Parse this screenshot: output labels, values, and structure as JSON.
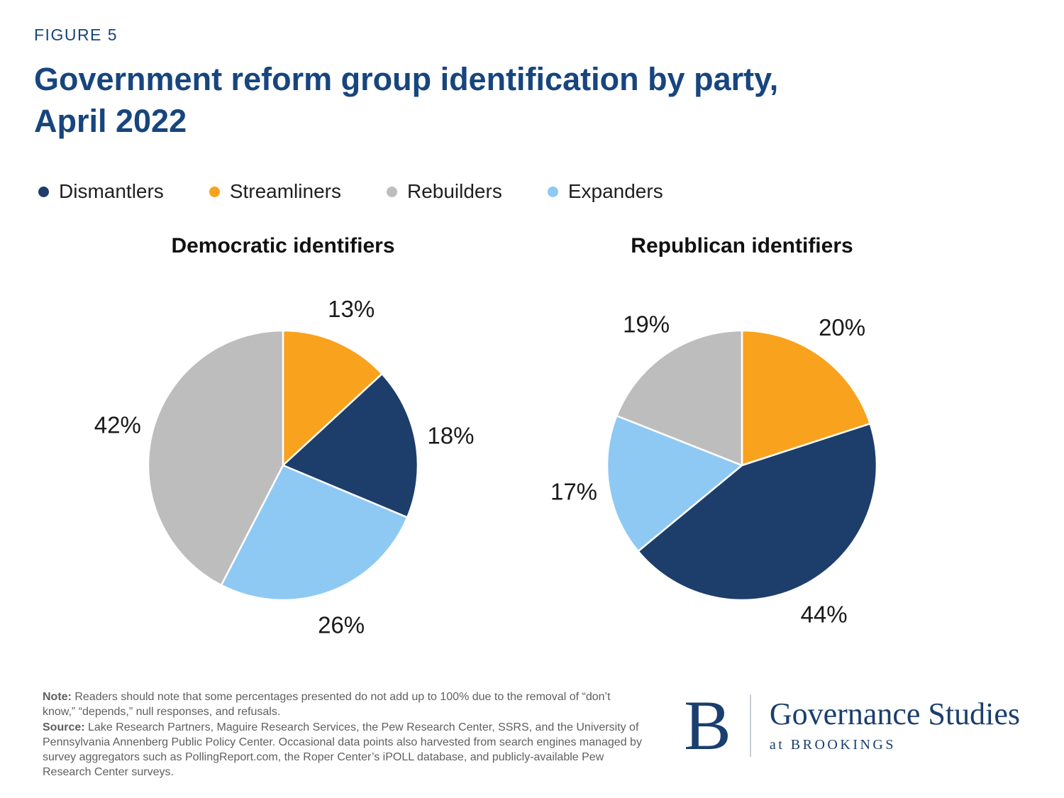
{
  "figure_label": "FIGURE 5",
  "title": {
    "full": "Government reform group identification by party, April 2022",
    "line1": "Government reform group identification by party,",
    "line2": "April 2022"
  },
  "colors": {
    "navy": "#1D3E6B",
    "orange": "#F9A21D",
    "gray": "#BDBDBD",
    "light_blue": "#8EC9F4",
    "brand_blue": "#17457E"
  },
  "legend": [
    {
      "label": "Dismantlers",
      "color": "#1D3E6B"
    },
    {
      "label": "Streamliners",
      "color": "#F9A21D"
    },
    {
      "label": "Rebuilders",
      "color": "#BDBDBD"
    },
    {
      "label": "Expanders",
      "color": "#8EC9F4"
    }
  ],
  "chart_data": [
    {
      "type": "pie",
      "title": "Democratic identifiers",
      "start_angle_deg": 0,
      "direction": "clockwise",
      "slices": [
        {
          "label": "Streamliners",
          "value": 13,
          "color": "#F9A21D"
        },
        {
          "label": "Dismantlers",
          "value": 18,
          "color": "#1D3E6B"
        },
        {
          "label": "Expanders",
          "value": 26,
          "color": "#8EC9F4"
        },
        {
          "label": "Rebuilders",
          "value": 42,
          "color": "#BDBDBD"
        }
      ]
    },
    {
      "type": "pie",
      "title": "Republican identifiers",
      "start_angle_deg": 0,
      "direction": "clockwise",
      "slices": [
        {
          "label": "Streamliners",
          "value": 20,
          "color": "#F9A21D"
        },
        {
          "label": "Dismantlers",
          "value": 44,
          "color": "#1D3E6B"
        },
        {
          "label": "Expanders",
          "value": 17,
          "color": "#8EC9F4"
        },
        {
          "label": "Rebuilders",
          "value": 19,
          "color": "#BDBDBD"
        }
      ]
    }
  ],
  "note": {
    "note_label": "Note:",
    "note_text": "Readers should note that some percentages presented do not add up to 100% due to the removal of “don’t know,” “depends,” null responses, and refusals.",
    "source_label": "Source:",
    "source_text": "Lake Research Partners, Maguire Research Services, the Pew Research Center, SSRS, and the University of Pennsylvania Annenberg Public Policy Center. Occasional data points also harvested from search engines managed by survey aggregators such as PollingReport.com, the Roper Center’s iPOLL database, and publicly-available Pew Research Center surveys."
  },
  "logo": {
    "letter": "B",
    "name": "Governance Studies",
    "sub": "at BROOKINGS"
  }
}
